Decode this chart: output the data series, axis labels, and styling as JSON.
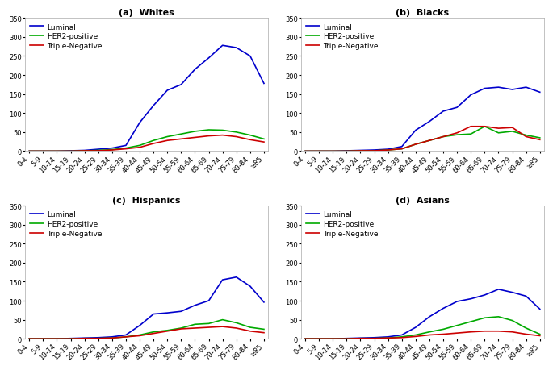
{
  "age_labels": [
    "0-4",
    "5-9",
    "10-14",
    "15-19",
    "20-24",
    "25-29",
    "30-34",
    "35-39",
    "40-44",
    "45-49",
    "50-54",
    "55-59",
    "60-64",
    "65-69",
    "70-74",
    "75-79",
    "80-84",
    "≥85"
  ],
  "subplots": [
    {
      "title": "(a)  Whites",
      "luminal": [
        0,
        0,
        0,
        1,
        2,
        5,
        8,
        15,
        75,
        120,
        160,
        175,
        215,
        245,
        278,
        272,
        250,
        178
      ],
      "her2positive": [
        0,
        0,
        0,
        0,
        1,
        2,
        4,
        8,
        15,
        28,
        38,
        45,
        52,
        56,
        55,
        50,
        42,
        32
      ],
      "triplenegative": [
        0,
        0,
        0,
        0,
        1,
        1,
        3,
        6,
        10,
        20,
        28,
        32,
        36,
        40,
        42,
        38,
        30,
        24
      ]
    },
    {
      "title": "(b)  Blacks",
      "luminal": [
        0,
        0,
        0,
        1,
        2,
        3,
        5,
        12,
        55,
        78,
        105,
        115,
        148,
        165,
        168,
        162,
        168,
        155
      ],
      "her2positive": [
        0,
        0,
        0,
        0,
        1,
        1,
        3,
        6,
        18,
        28,
        38,
        43,
        45,
        65,
        48,
        52,
        42,
        35
      ],
      "triplenegative": [
        0,
        0,
        0,
        0,
        1,
        1,
        3,
        6,
        18,
        28,
        38,
        48,
        65,
        65,
        60,
        62,
        38,
        30
      ]
    },
    {
      "title": "(c)  Hispanics",
      "luminal": [
        0,
        0,
        0,
        1,
        2,
        3,
        5,
        10,
        35,
        65,
        68,
        72,
        88,
        100,
        155,
        162,
        138,
        96
      ],
      "her2positive": [
        0,
        0,
        0,
        0,
        1,
        1,
        2,
        5,
        10,
        18,
        22,
        28,
        38,
        40,
        50,
        42,
        30,
        25
      ],
      "triplenegative": [
        0,
        0,
        0,
        0,
        1,
        1,
        2,
        5,
        8,
        14,
        20,
        26,
        28,
        30,
        32,
        28,
        20,
        16
      ]
    },
    {
      "title": "(d)  Asians",
      "luminal": [
        0,
        0,
        0,
        1,
        2,
        3,
        5,
        10,
        30,
        58,
        80,
        98,
        105,
        115,
        130,
        122,
        112,
        78
      ],
      "her2positive": [
        0,
        0,
        0,
        0,
        1,
        1,
        2,
        5,
        10,
        18,
        25,
        35,
        45,
        55,
        58,
        48,
        28,
        12
      ],
      "triplenegative": [
        0,
        0,
        0,
        0,
        1,
        1,
        2,
        3,
        6,
        10,
        12,
        15,
        18,
        20,
        20,
        18,
        12,
        8
      ]
    }
  ],
  "colors": {
    "luminal": "#0000cc",
    "her2positive": "#00aa00",
    "triplenegative": "#cc0000"
  },
  "legend_labels": [
    "Luminal",
    "HER2-positive",
    "Triple-Negative"
  ],
  "ylim": [
    0,
    350
  ],
  "yticks": [
    0,
    50,
    100,
    150,
    200,
    250,
    300,
    350
  ],
  "linewidth": 1.2,
  "title_fontsize": 8,
  "tick_fontsize": 6,
  "legend_fontsize": 6.5
}
